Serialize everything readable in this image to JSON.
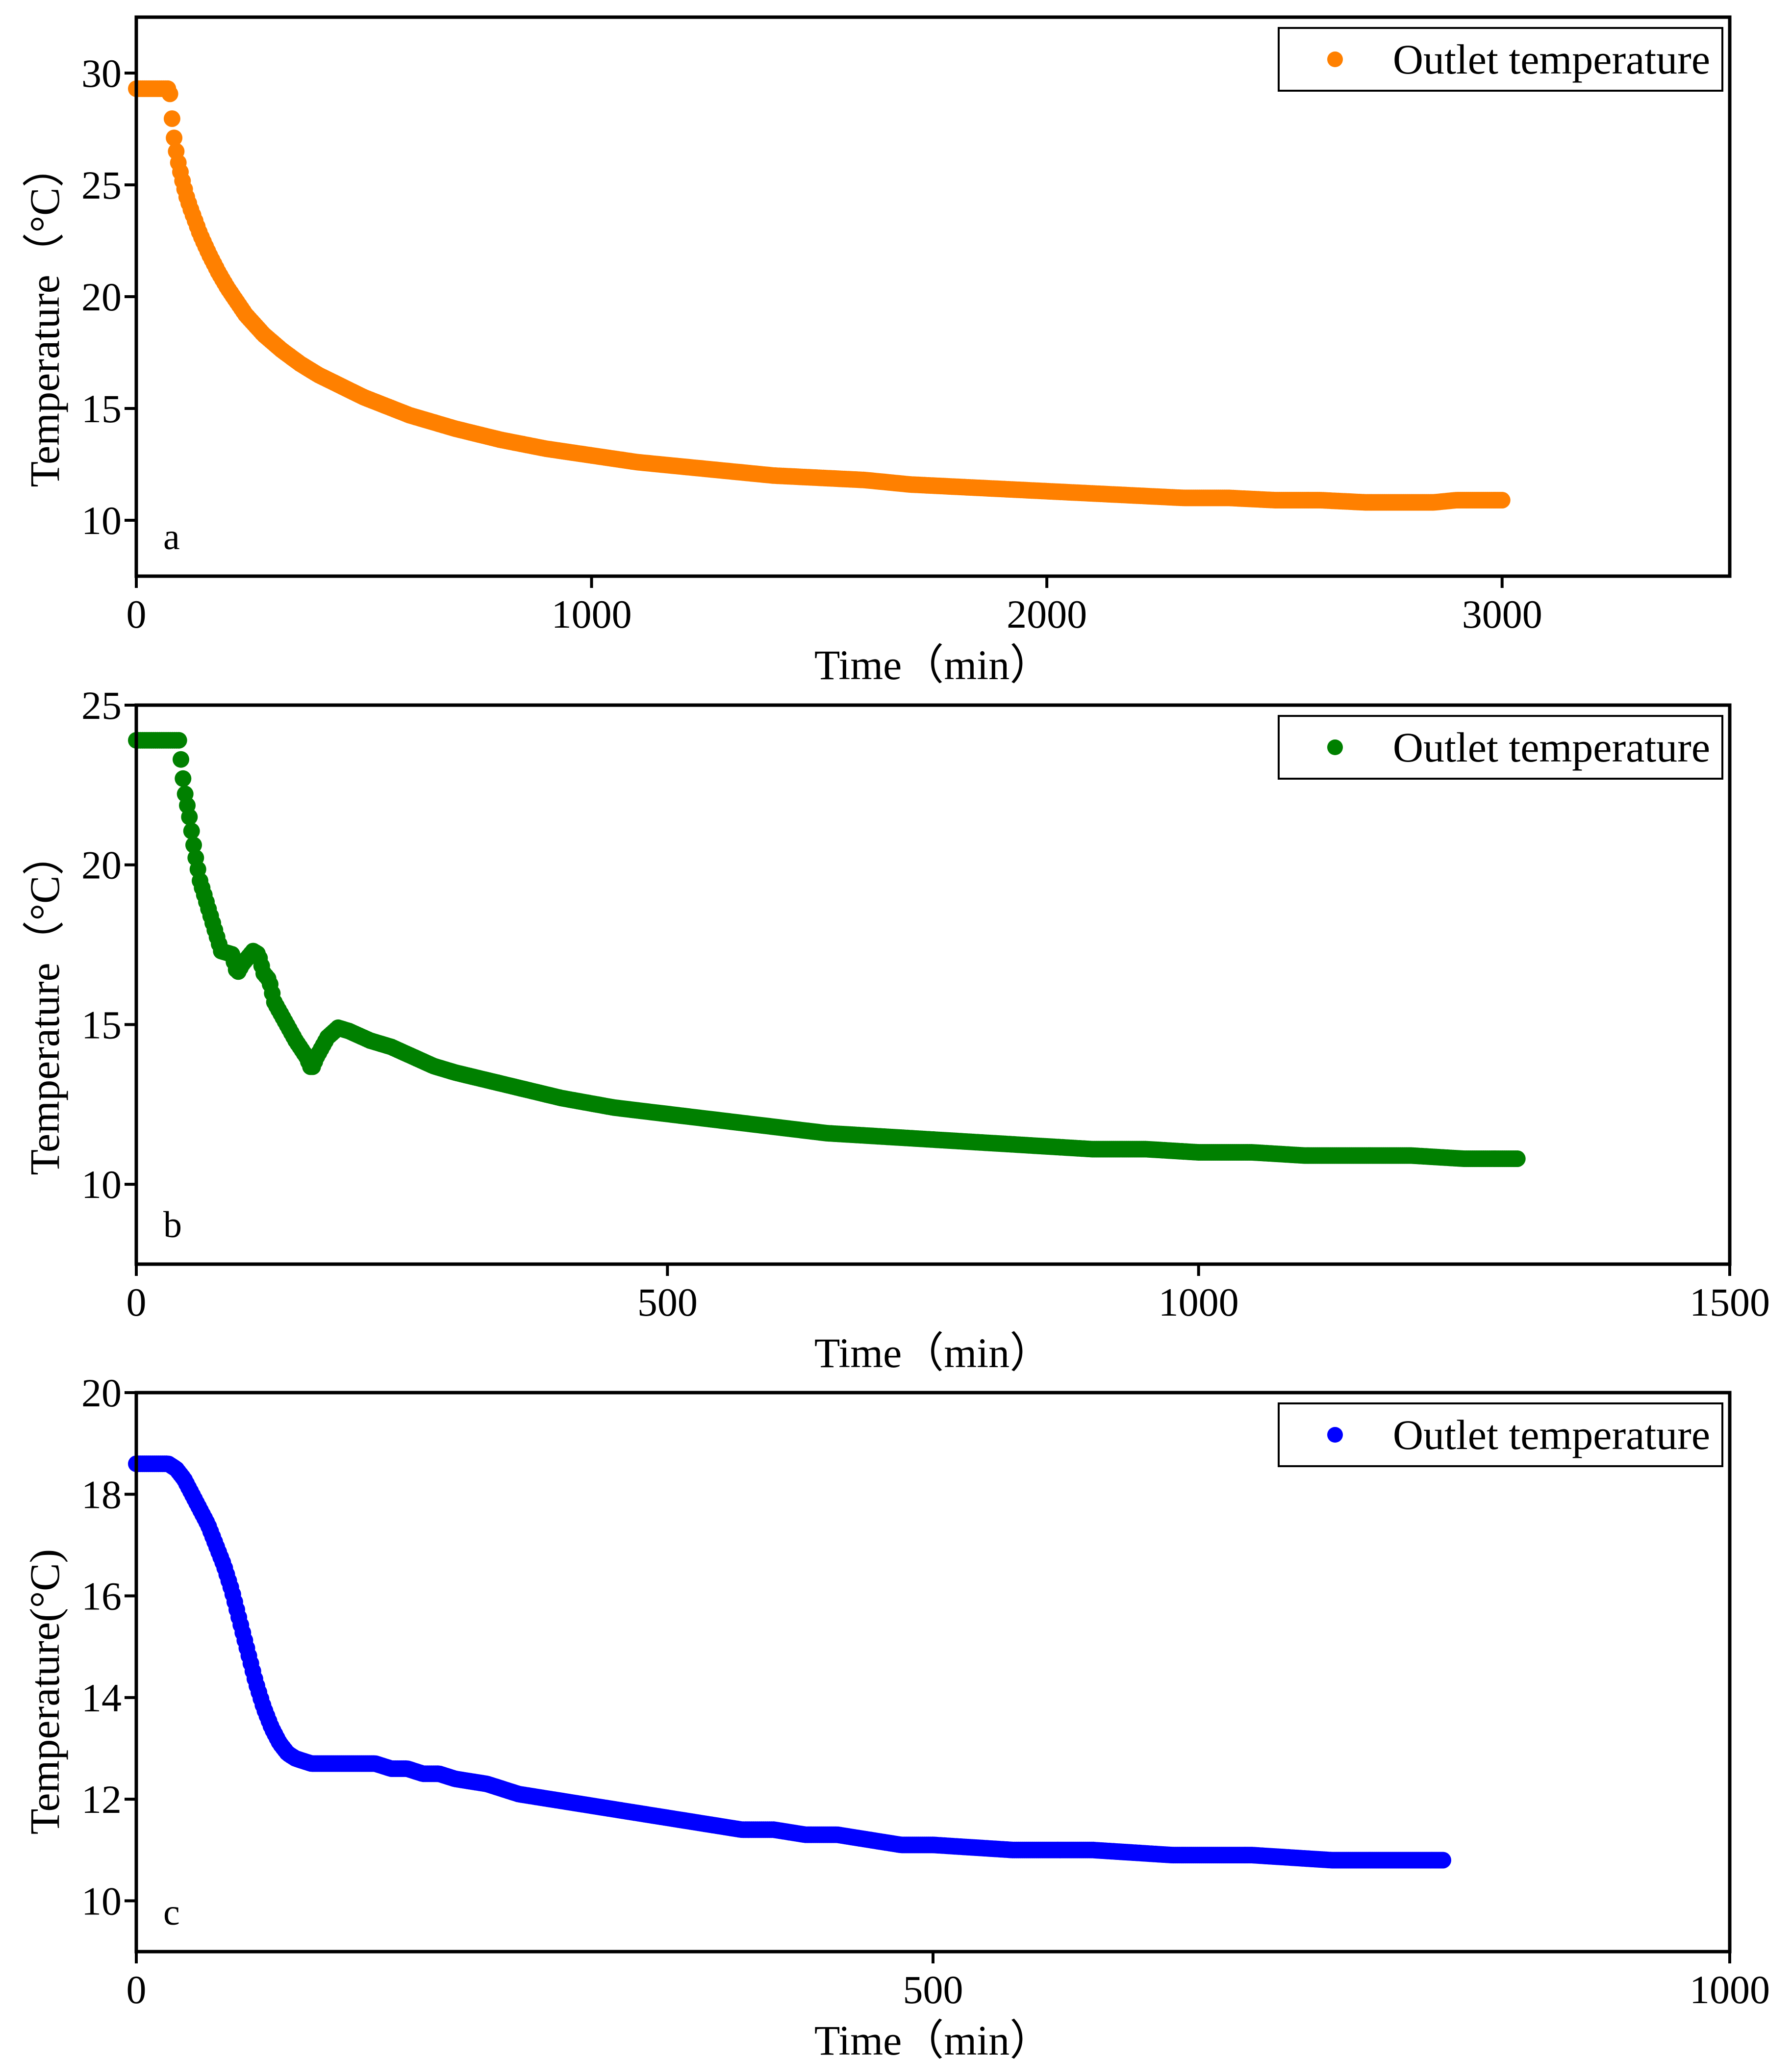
{
  "chart_data": [
    {
      "panel": "a",
      "type": "scatter",
      "xlabel": "Time（min）",
      "ylabel": "Temperature（°C）",
      "xlim": [
        0,
        3500
      ],
      "ylim": [
        7.5,
        32.5
      ],
      "xticks": [
        0,
        1000,
        2000,
        3000
      ],
      "yticks": [
        10,
        15,
        20,
        25,
        30
      ],
      "legend": {
        "label": "Outlet temperature",
        "position": "top-right"
      },
      "color": "#ff8000",
      "series": [
        {
          "name": "Outlet temperature",
          "x": [
            0,
            20,
            40,
            60,
            70,
            75,
            80,
            90,
            100,
            110,
            120,
            140,
            160,
            180,
            200,
            240,
            280,
            320,
            360,
            400,
            450,
            500,
            550,
            600,
            700,
            800,
            900,
            1000,
            1100,
            1200,
            1300,
            1400,
            1500,
            1600,
            1700,
            1800,
            1900,
            2000,
            2100,
            2200,
            2300,
            2400,
            2500,
            2600,
            2700,
            2800,
            2850,
            2900,
            2950,
            3000
          ],
          "y": [
            29.3,
            29.3,
            29.3,
            29.3,
            29.3,
            29.0,
            27.5,
            26.2,
            25.3,
            24.5,
            23.9,
            22.8,
            21.9,
            21.1,
            20.4,
            19.2,
            18.3,
            17.6,
            17.0,
            16.5,
            16.0,
            15.5,
            15.1,
            14.7,
            14.1,
            13.6,
            13.2,
            12.9,
            12.6,
            12.4,
            12.2,
            12.0,
            11.9,
            11.8,
            11.6,
            11.5,
            11.4,
            11.3,
            11.2,
            11.1,
            11.0,
            11.0,
            10.9,
            10.9,
            10.8,
            10.8,
            10.8,
            10.9,
            10.9,
            10.9
          ]
        }
      ]
    },
    {
      "panel": "b",
      "type": "scatter",
      "xlabel": "Time（min）",
      "ylabel": "Temperature（°C）",
      "xlim": [
        0,
        1500
      ],
      "ylim": [
        7.5,
        25
      ],
      "xticks": [
        0,
        500,
        1000,
        1500
      ],
      "yticks": [
        10,
        15,
        20,
        25
      ],
      "legend": {
        "label": "Outlet temperature",
        "position": "top-right"
      },
      "color": "#008000",
      "series": [
        {
          "name": "Outlet temperature",
          "x": [
            0,
            10,
            20,
            30,
            40,
            45,
            50,
            55,
            60,
            70,
            80,
            90,
            95,
            100,
            110,
            115,
            120,
            125,
            130,
            140,
            150,
            160,
            165,
            170,
            180,
            190,
            200,
            220,
            240,
            260,
            280,
            300,
            350,
            400,
            450,
            500,
            550,
            600,
            650,
            700,
            750,
            800,
            850,
            900,
            950,
            1000,
            1050,
            1100,
            1150,
            1200,
            1250,
            1300
          ],
          "y": [
            23.9,
            23.9,
            23.9,
            23.9,
            23.9,
            22.4,
            21.5,
            20.4,
            19.5,
            18.4,
            17.3,
            17.2,
            16.6,
            16.9,
            17.3,
            17.2,
            16.6,
            16.4,
            15.7,
            15.1,
            14.5,
            14.0,
            13.6,
            14.0,
            14.6,
            14.9,
            14.8,
            14.5,
            14.3,
            14.0,
            13.7,
            13.5,
            13.1,
            12.7,
            12.4,
            12.2,
            12.0,
            11.8,
            11.6,
            11.5,
            11.4,
            11.3,
            11.2,
            11.1,
            11.1,
            11.0,
            11.0,
            10.9,
            10.9,
            10.9,
            10.8,
            10.8
          ]
        }
      ]
    },
    {
      "panel": "c",
      "type": "scatter",
      "xlabel": "Time（min）",
      "ylabel": "Temperature(°C)",
      "xlim": [
        0,
        1000
      ],
      "ylim": [
        9,
        20
      ],
      "xticks": [
        0,
        500,
        1000
      ],
      "yticks": [
        10,
        12,
        14,
        16,
        18,
        20
      ],
      "legend": {
        "label": "Outlet temperature",
        "position": "top-right"
      },
      "color": "#0000ff",
      "series": [
        {
          "name": "Outlet temperature",
          "x": [
            0,
            10,
            20,
            25,
            30,
            35,
            40,
            45,
            50,
            55,
            60,
            65,
            70,
            75,
            80,
            85,
            90,
            95,
            100,
            110,
            120,
            130,
            140,
            150,
            160,
            170,
            180,
            190,
            200,
            220,
            240,
            260,
            280,
            300,
            320,
            340,
            360,
            380,
            400,
            420,
            440,
            460,
            480,
            500,
            550,
            600,
            650,
            700,
            750,
            800,
            820
          ],
          "y": [
            18.6,
            18.6,
            18.6,
            18.5,
            18.3,
            18.0,
            17.7,
            17.4,
            17.0,
            16.6,
            16.1,
            15.5,
            14.9,
            14.3,
            13.8,
            13.4,
            13.1,
            12.9,
            12.8,
            12.7,
            12.7,
            12.7,
            12.7,
            12.7,
            12.6,
            12.6,
            12.5,
            12.5,
            12.4,
            12.3,
            12.1,
            12.0,
            11.9,
            11.8,
            11.7,
            11.6,
            11.5,
            11.4,
            11.4,
            11.3,
            11.3,
            11.2,
            11.1,
            11.1,
            11.0,
            11.0,
            10.9,
            10.9,
            10.8,
            10.8,
            10.8
          ]
        }
      ]
    }
  ]
}
